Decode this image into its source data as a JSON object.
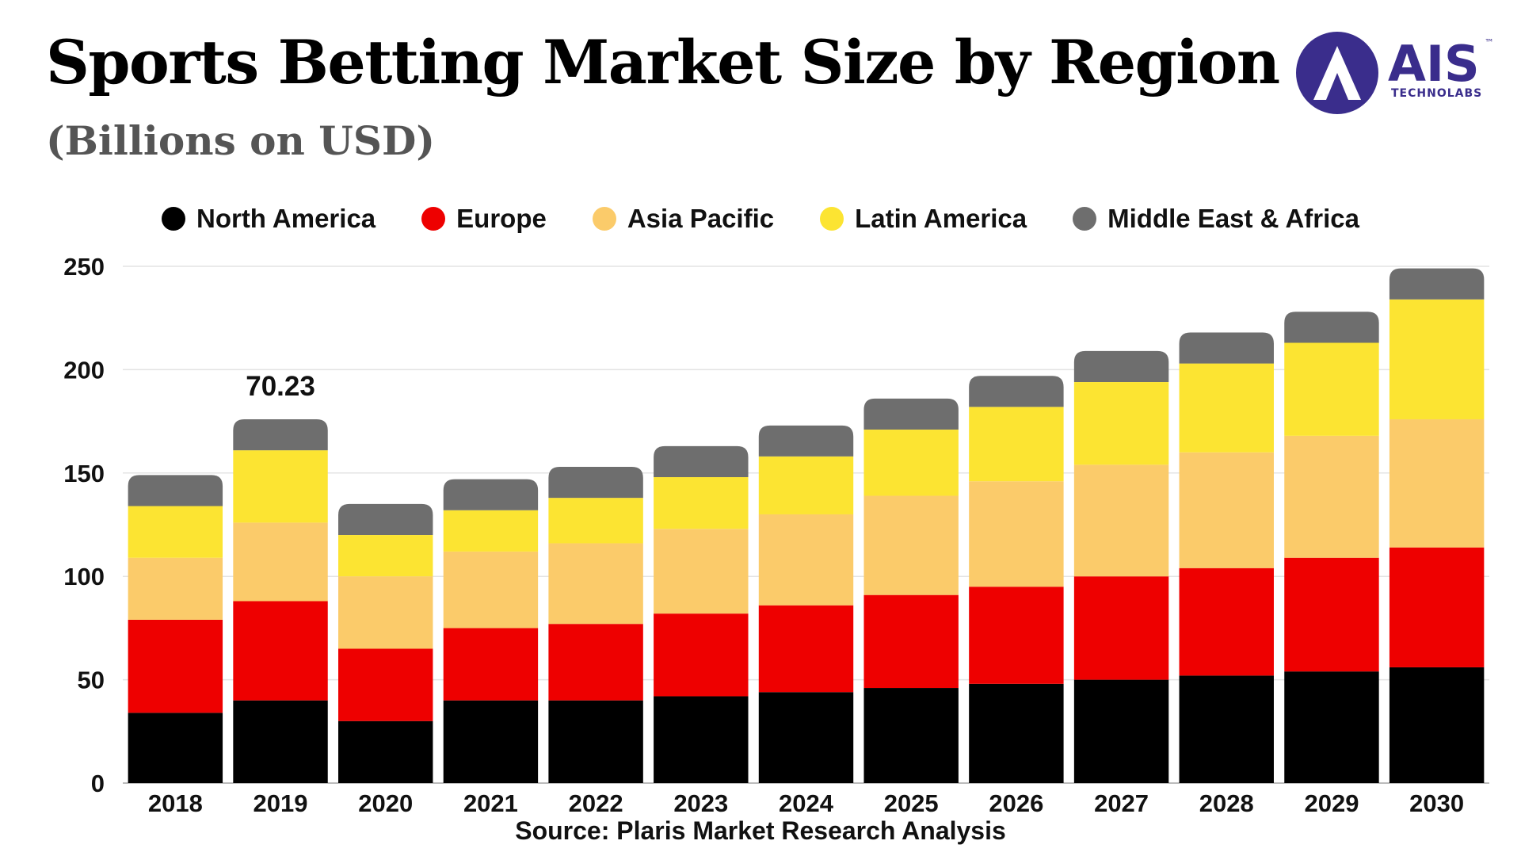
{
  "title": "Sports Betting Market Size by Region",
  "subtitle": "(Billions on USD)",
  "logo": {
    "brand": "AIS",
    "tagline": "TECHNOLABS",
    "mark": "A",
    "tm": "™",
    "color": "#3a2d8c"
  },
  "source": "Source: Plaris Market Research Analysis",
  "chart_data": {
    "type": "bar",
    "stacked": true,
    "title": "Sports Betting Market Size by Region",
    "subtitle": "(Billions on USD)",
    "xlabel": "",
    "ylabel": "",
    "ylim": [
      0,
      250
    ],
    "yticks": [
      0,
      50,
      100,
      150,
      200,
      250
    ],
    "grid": true,
    "legend_position": "top-center",
    "categories": [
      "2018",
      "2019",
      "2020",
      "2021",
      "2022",
      "2023",
      "2024",
      "2025",
      "2026",
      "2027",
      "2028",
      "2029",
      "2030"
    ],
    "series": [
      {
        "name": "North America",
        "color": "#000000",
        "values": [
          34,
          40,
          30,
          40,
          40,
          42,
          44,
          46,
          48,
          50,
          52,
          54,
          56
        ]
      },
      {
        "name": "Europe",
        "color": "#ee0000",
        "values": [
          45,
          48,
          35,
          35,
          37,
          40,
          42,
          45,
          47,
          50,
          52,
          55,
          58
        ]
      },
      {
        "name": "Asia Pacific",
        "color": "#fbcb6a",
        "values": [
          30,
          38,
          35,
          37,
          39,
          41,
          44,
          48,
          51,
          54,
          56,
          59,
          62
        ]
      },
      {
        "name": "Latin America",
        "color": "#fce432",
        "values": [
          25,
          35,
          20,
          20,
          22,
          25,
          28,
          32,
          36,
          40,
          43,
          45,
          58
        ]
      },
      {
        "name": "Middle East & Africa",
        "color": "#6e6e6e",
        "values": [
          15,
          15,
          15,
          15,
          15,
          15,
          15,
          15,
          15,
          15,
          15,
          15,
          15
        ]
      }
    ],
    "annotations": [
      {
        "category": "2019",
        "text": "70.23"
      }
    ]
  }
}
